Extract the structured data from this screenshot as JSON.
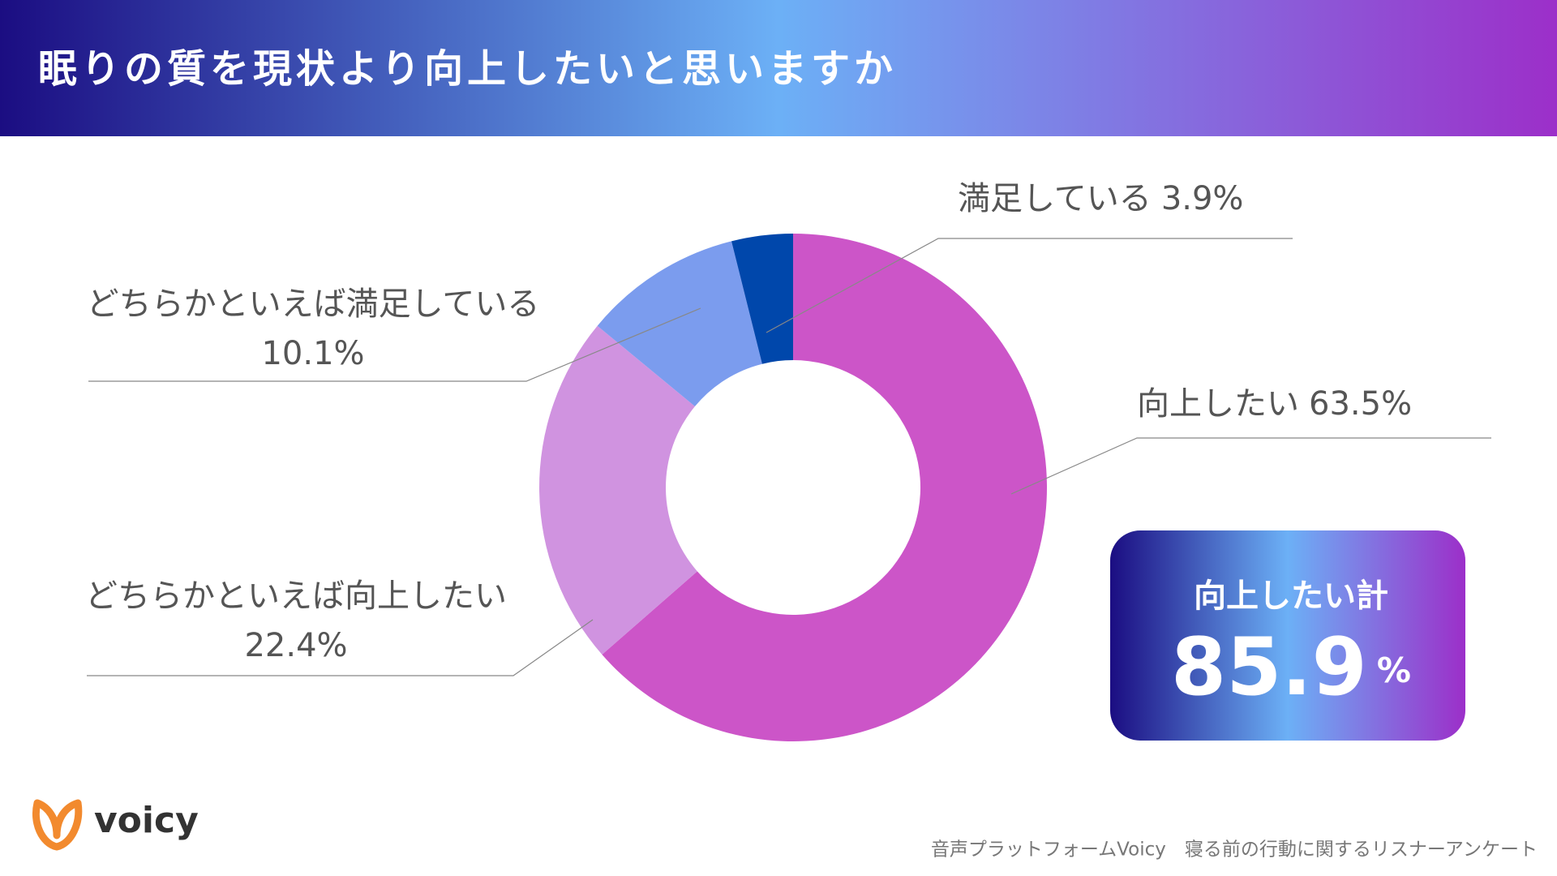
{
  "chart_data": {
    "type": "donut",
    "title": "眠りの質を現状より向上したいと思いますか",
    "categories": [
      "向上したい",
      "どちらかといえば向上したい",
      "どちらかといえば満足している",
      "満足している"
    ],
    "values": [
      63.5,
      22.4,
      10.1,
      3.9
    ],
    "value_labels": [
      "63.5%",
      "22.4%",
      "10.1%",
      "3.9%"
    ],
    "colors": [
      "#cc55c8",
      "#d093e0",
      "#7b9cee",
      "#0047ab"
    ],
    "callout": {
      "label": "向上したい計",
      "value": 85.9,
      "unit": "%"
    },
    "source": "音声プラットフォームVoicy　寝る前の行動に関するリスナーアンケート",
    "brand": "voicy"
  }
}
